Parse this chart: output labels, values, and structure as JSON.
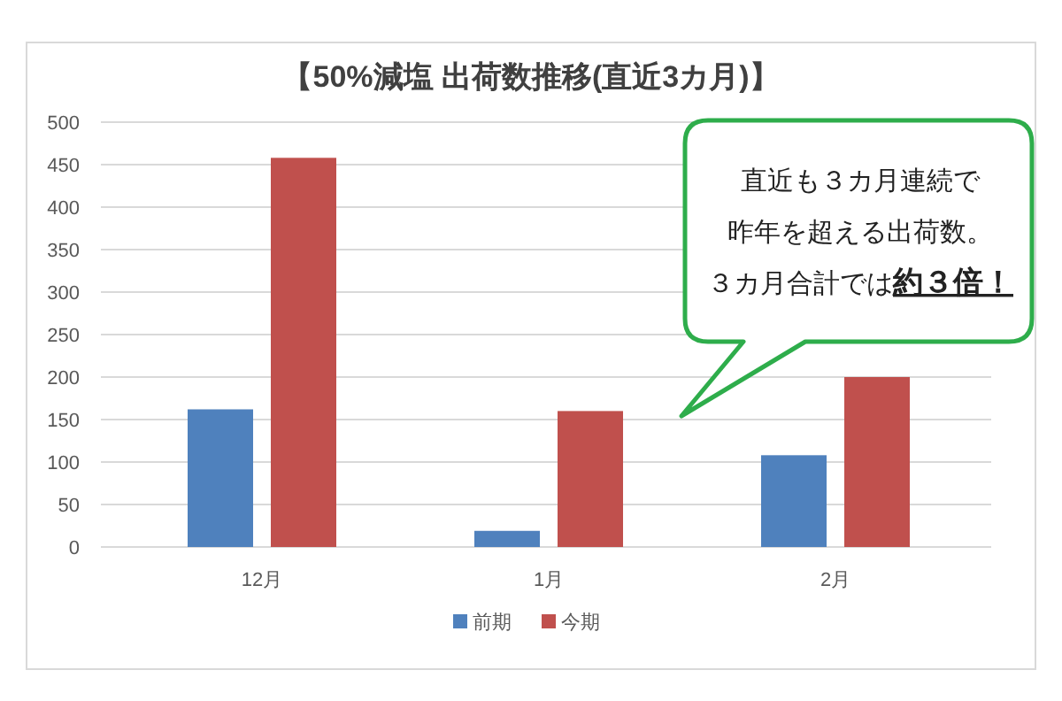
{
  "chart_data": {
    "type": "bar",
    "title": "【50%減塩 出荷数推移(直近3カ月)】",
    "categories": [
      "12月",
      "1月",
      "2月"
    ],
    "series": [
      {
        "name": "前期",
        "color": "#4f81bd",
        "values": [
          162,
          19,
          108
        ]
      },
      {
        "name": "今期",
        "color": "#c0504d",
        "values": [
          458,
          160,
          200
        ]
      }
    ],
    "ylim": [
      0,
      500
    ],
    "yticks": [
      0,
      50,
      100,
      150,
      200,
      250,
      300,
      350,
      400,
      450,
      500
    ],
    "grid": "y",
    "legend": "bottom",
    "annotations": [
      "直近も３カ月連続で",
      "昨年を超える出荷数。",
      "３カ月合計では",
      "約３倍！"
    ]
  }
}
